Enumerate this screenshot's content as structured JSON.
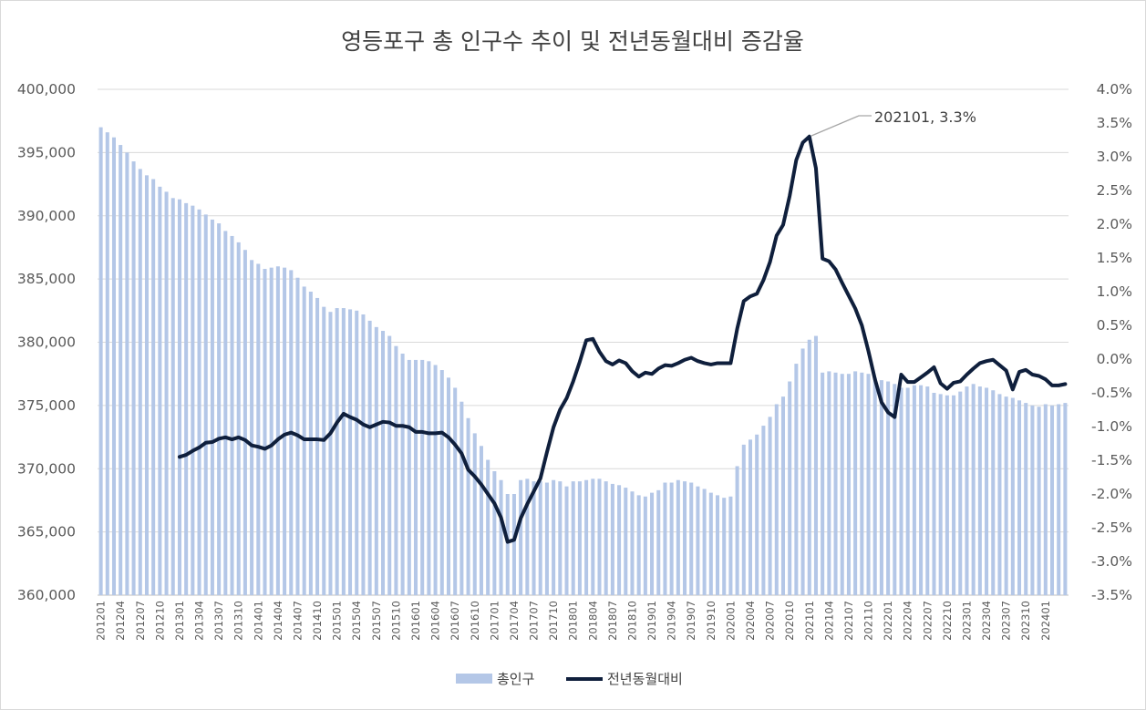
{
  "chart_data": {
    "type": "bar+line",
    "title": "영등포구 총 인구수 추이 및 전년동월대비 증감율",
    "left_axis": {
      "min": 360000,
      "max": 400000,
      "step": 5000,
      "tick_labels": [
        "360,000",
        "365,000",
        "370,000",
        "375,000",
        "380,000",
        "385,000",
        "390,000",
        "395,000",
        "400,000"
      ]
    },
    "right_axis": {
      "min": -3.5,
      "max": 4.0,
      "step": 0.5,
      "tick_labels": [
        "-3.5%",
        "-3.0%",
        "-2.5%",
        "-2.0%",
        "-1.5%",
        "-1.0%",
        "-0.5%",
        "0.0%",
        "0.5%",
        "1.0%",
        "1.5%",
        "2.0%",
        "2.5%",
        "3.0%",
        "3.5%",
        "4.0%"
      ]
    },
    "x_tick_labels": [
      "201201",
      "201204",
      "201207",
      "201210",
      "201301",
      "201304",
      "201307",
      "201310",
      "201401",
      "201404",
      "201407",
      "201410",
      "201501",
      "201504",
      "201507",
      "201510",
      "201601",
      "201604",
      "201607",
      "201610",
      "201701",
      "201704",
      "201707",
      "201710",
      "201801",
      "201804",
      "201807",
      "201810",
      "201901",
      "201904",
      "201907",
      "201910",
      "202001",
      "202004",
      "202007",
      "202010",
      "202101",
      "202104",
      "202107",
      "202110",
      "202201",
      "202204",
      "202207",
      "202210",
      "202301",
      "202304",
      "202307",
      "202310",
      "202401"
    ],
    "series": [
      {
        "name": "총인구",
        "type": "bar",
        "axis": "left",
        "color": "#b4c7e7",
        "values": [
          397000,
          396600,
          396200,
          395600,
          395000,
          394300,
          393700,
          393200,
          392900,
          392300,
          391900,
          391400,
          391300,
          391000,
          390800,
          390500,
          390100,
          389700,
          389400,
          388800,
          388400,
          387900,
          387300,
          386500,
          386200,
          385800,
          385900,
          386000,
          385900,
          385700,
          385100,
          384400,
          384000,
          383500,
          382800,
          382400,
          382700,
          382700,
          382600,
          382500,
          382200,
          381700,
          381200,
          380900,
          380500,
          379700,
          379100,
          378600,
          378600,
          378600,
          378500,
          378200,
          377800,
          377200,
          376400,
          375300,
          374000,
          372800,
          371800,
          370700,
          369800,
          369100,
          368000,
          368000,
          369100,
          369200,
          369000,
          369000,
          368900,
          369100,
          369000,
          368600,
          369000,
          369000,
          369100,
          369200,
          369200,
          369000,
          368800,
          368700,
          368500,
          368200,
          367900,
          367800,
          368100,
          368300,
          368900,
          368900,
          369100,
          369000,
          368900,
          368600,
          368400,
          368100,
          367900,
          367700,
          367800,
          370200,
          371900,
          372300,
          372700,
          373400,
          374100,
          375100,
          375700,
          376900,
          378300,
          379500,
          380200,
          380500,
          377600,
          377700,
          377600,
          377500,
          377500,
          377700,
          377600,
          377500,
          377200,
          377000,
          376900,
          376700,
          376400,
          376400,
          376600,
          376600,
          376500,
          376000,
          375900,
          375800,
          375800,
          376100,
          376500,
          376700,
          376500,
          376400,
          376200,
          375900,
          375700,
          375600,
          375400,
          375200,
          375000,
          374900,
          375100,
          375000,
          375100,
          375200
        ]
      },
      {
        "name": "전년동월대비",
        "type": "line",
        "axis": "right",
        "color": "#0f1f3c",
        "values": [
          null,
          null,
          null,
          null,
          null,
          null,
          null,
          null,
          null,
          null,
          null,
          null,
          -1.45,
          -1.42,
          -1.36,
          -1.31,
          -1.24,
          -1.23,
          -1.18,
          -1.16,
          -1.19,
          -1.16,
          -1.2,
          -1.28,
          -1.3,
          -1.33,
          -1.28,
          -1.19,
          -1.12,
          -1.09,
          -1.13,
          -1.19,
          -1.19,
          -1.19,
          -1.2,
          -1.1,
          -0.94,
          -0.81,
          -0.86,
          -0.9,
          -0.97,
          -1.01,
          -0.97,
          -0.93,
          -0.94,
          -0.99,
          -0.99,
          -1.01,
          -1.08,
          -1.08,
          -1.1,
          -1.1,
          -1.09,
          -1.16,
          -1.27,
          -1.4,
          -1.64,
          -1.74,
          -1.86,
          -2.0,
          -2.14,
          -2.35,
          -2.71,
          -2.68,
          -2.36,
          -2.15,
          -1.96,
          -1.77,
          -1.38,
          -1.01,
          -0.75,
          -0.58,
          -0.33,
          -0.04,
          0.28,
          0.3,
          0.11,
          -0.03,
          -0.08,
          -0.02,
          -0.06,
          -0.18,
          -0.26,
          -0.2,
          -0.22,
          -0.14,
          -0.09,
          -0.1,
          -0.06,
          -0.01,
          0.02,
          -0.03,
          -0.06,
          -0.08,
          -0.06,
          -0.06,
          -0.06,
          0.45,
          0.86,
          0.93,
          0.97,
          1.17,
          1.44,
          1.83,
          1.99,
          2.42,
          2.95,
          3.21,
          3.3,
          2.83,
          1.49,
          1.45,
          1.33,
          1.13,
          0.94,
          0.75,
          0.5,
          0.12,
          -0.3,
          -0.64,
          -0.79,
          -0.86,
          -0.23,
          -0.34,
          -0.34,
          -0.27,
          -0.2,
          -0.12,
          -0.36,
          -0.44,
          -0.35,
          -0.33,
          -0.23,
          -0.14,
          -0.06,
          -0.03,
          -0.01,
          -0.09,
          -0.17,
          -0.45,
          -0.19,
          -0.16,
          -0.23,
          -0.25,
          -0.3,
          -0.39,
          -0.39,
          -0.37
        ]
      }
    ],
    "annotation": {
      "label": "202101, 3.3%"
    },
    "legend": {
      "position": "bottom",
      "items": [
        "총인구",
        "전년동월대비"
      ]
    }
  }
}
